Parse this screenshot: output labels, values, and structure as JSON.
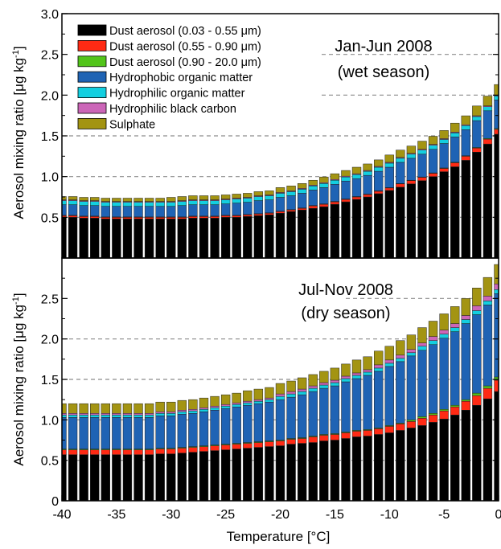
{
  "figure": {
    "xlabel": "Temperature [°C]",
    "ylabel_main": "Aerosol mixing ratio [μg kg",
    "ylabel_sup": "-1",
    "ylabel_end": "]"
  },
  "legend": [
    {
      "label": "Dust aerosol (0.03 - 0.55 μm)",
      "color": "#000000"
    },
    {
      "label": "Dust aerosol (0.55 - 0.90 μm)",
      "color": "#ff2a14"
    },
    {
      "label": "Dust aerosol (0.90 - 20.0 μm)",
      "color": "#52c41a"
    },
    {
      "label": "Hydrophobic organic matter",
      "color": "#1f63b4"
    },
    {
      "label": "Hydrophilic organic matter",
      "color": "#13cfe0"
    },
    {
      "label": "Hydrophilic black carbon",
      "color": "#cc66b8"
    },
    {
      "label": "Sulphate",
      "color": "#a39412"
    }
  ],
  "chart_data": [
    {
      "type": "bar",
      "stacked": true,
      "panel": "top",
      "annotation": [
        "Jan-Jun 2008",
        "(wet season)"
      ],
      "ylabel": "Aerosol mixing ratio [μg kg-1]",
      "ylim": [
        0,
        3.0
      ],
      "yticks": [
        0.5,
        1.0,
        1.5,
        2.0,
        2.5,
        3.0
      ],
      "xlim": [
        -40,
        0
      ],
      "xticks": [
        -40,
        -35,
        -30,
        -25,
        -20,
        -15,
        -10,
        -5,
        0
      ],
      "grid": "dashed horizontal lines at 0.5, 1.0, 1.5, 2.0, 2.5",
      "legend_position": "top-left",
      "x": [
        -40,
        -39,
        -38,
        -37,
        -36,
        -35,
        -34,
        -33,
        -32,
        -31,
        -30,
        -29,
        -28,
        -27,
        -26,
        -25,
        -24,
        -23,
        -22,
        -21,
        -20,
        -19,
        -18,
        -17,
        -16,
        -15,
        -14,
        -13,
        -12,
        -11,
        -10,
        -9,
        -8,
        -7,
        -6,
        -5,
        -4,
        -3,
        -2,
        -1,
        0
      ],
      "series": [
        {
          "name": "Dust aerosol (0.03 - 0.55 μm)",
          "values": [
            0.5,
            0.5,
            0.49,
            0.49,
            0.48,
            0.48,
            0.48,
            0.48,
            0.48,
            0.48,
            0.48,
            0.48,
            0.49,
            0.49,
            0.49,
            0.5,
            0.5,
            0.51,
            0.52,
            0.53,
            0.55,
            0.57,
            0.59,
            0.61,
            0.63,
            0.66,
            0.69,
            0.72,
            0.75,
            0.79,
            0.83,
            0.87,
            0.91,
            0.95,
            1.0,
            1.06,
            1.12,
            1.2,
            1.3,
            1.4,
            1.52
          ]
        },
        {
          "name": "Dust aerosol (0.55 - 0.90 μm)",
          "values": [
            0.02,
            0.02,
            0.02,
            0.02,
            0.02,
            0.02,
            0.02,
            0.02,
            0.02,
            0.02,
            0.02,
            0.02,
            0.02,
            0.02,
            0.02,
            0.02,
            0.02,
            0.02,
            0.02,
            0.02,
            0.02,
            0.02,
            0.02,
            0.03,
            0.03,
            0.03,
            0.03,
            0.03,
            0.03,
            0.03,
            0.03,
            0.04,
            0.04,
            0.04,
            0.04,
            0.04,
            0.05,
            0.05,
            0.05,
            0.06,
            0.06
          ]
        },
        {
          "name": "Dust aerosol (0.90 - 20.0 μm)",
          "values": [
            0.005,
            0.005,
            0.005,
            0.005,
            0.005,
            0.005,
            0.005,
            0.005,
            0.005,
            0.005,
            0.005,
            0.005,
            0.005,
            0.005,
            0.005,
            0.005,
            0.005,
            0.005,
            0.005,
            0.005,
            0.005,
            0.005,
            0.005,
            0.005,
            0.005,
            0.005,
            0.005,
            0.005,
            0.005,
            0.005,
            0.005,
            0.005,
            0.005,
            0.005,
            0.005,
            0.006,
            0.006,
            0.006,
            0.007,
            0.008,
            0.01
          ]
        },
        {
          "name": "Hydrophobic organic matter",
          "values": [
            0.13,
            0.13,
            0.13,
            0.13,
            0.13,
            0.13,
            0.13,
            0.13,
            0.13,
            0.13,
            0.13,
            0.14,
            0.14,
            0.14,
            0.14,
            0.14,
            0.15,
            0.15,
            0.16,
            0.16,
            0.17,
            0.17,
            0.18,
            0.19,
            0.2,
            0.21,
            0.22,
            0.22,
            0.23,
            0.24,
            0.25,
            0.26,
            0.27,
            0.28,
            0.29,
            0.3,
            0.31,
            0.32,
            0.33,
            0.34,
            0.35
          ]
        },
        {
          "name": "Hydrophilic organic matter",
          "values": [
            0.05,
            0.05,
            0.05,
            0.05,
            0.05,
            0.05,
            0.05,
            0.05,
            0.05,
            0.05,
            0.05,
            0.05,
            0.05,
            0.05,
            0.05,
            0.05,
            0.05,
            0.05,
            0.05,
            0.05,
            0.05,
            0.05,
            0.05,
            0.05,
            0.05,
            0.05,
            0.05,
            0.05,
            0.05,
            0.05,
            0.05,
            0.05,
            0.05,
            0.05,
            0.05,
            0.05,
            0.05,
            0.05,
            0.05,
            0.05,
            0.05
          ]
        },
        {
          "name": "Hydrophilic black carbon",
          "values": [
            0.01,
            0.01,
            0.01,
            0.01,
            0.01,
            0.01,
            0.01,
            0.01,
            0.01,
            0.01,
            0.01,
            0.01,
            0.01,
            0.01,
            0.01,
            0.01,
            0.01,
            0.01,
            0.01,
            0.01,
            0.01,
            0.01,
            0.01,
            0.01,
            0.01,
            0.01,
            0.01,
            0.01,
            0.01,
            0.01,
            0.01,
            0.01,
            0.01,
            0.01,
            0.01,
            0.01,
            0.01,
            0.01,
            0.01,
            0.01,
            0.01
          ]
        },
        {
          "name": "Sulphate",
          "values": [
            0.04,
            0.04,
            0.04,
            0.04,
            0.04,
            0.04,
            0.04,
            0.04,
            0.04,
            0.04,
            0.05,
            0.05,
            0.05,
            0.05,
            0.05,
            0.05,
            0.05,
            0.05,
            0.05,
            0.05,
            0.06,
            0.06,
            0.06,
            0.06,
            0.07,
            0.07,
            0.07,
            0.08,
            0.08,
            0.08,
            0.09,
            0.09,
            0.09,
            0.1,
            0.1,
            0.1,
            0.11,
            0.11,
            0.12,
            0.12,
            0.13
          ]
        }
      ]
    },
    {
      "type": "bar",
      "stacked": true,
      "panel": "bottom",
      "annotation": [
        "Jul-Nov 2008",
        "(dry season)"
      ],
      "ylabel": "Aerosol mixing ratio [μg kg-1]",
      "xlabel": "Temperature [°C]",
      "ylim": [
        0,
        3.0
      ],
      "yticks": [
        0,
        0.5,
        1.0,
        1.5,
        2.0,
        2.5
      ],
      "xlim": [
        -40,
        0
      ],
      "xticks": [
        -40,
        -35,
        -30,
        -25,
        -20,
        -15,
        -10,
        -5,
        0
      ],
      "grid": "dashed horizontal lines at 0.5, 1.0, 1.5, 2.0, 2.5",
      "x": [
        -40,
        -39,
        -38,
        -37,
        -36,
        -35,
        -34,
        -33,
        -32,
        -31,
        -30,
        -29,
        -28,
        -27,
        -26,
        -25,
        -24,
        -23,
        -22,
        -21,
        -20,
        -19,
        -18,
        -17,
        -16,
        -15,
        -14,
        -13,
        -12,
        -11,
        -10,
        -9,
        -8,
        -7,
        -6,
        -5,
        -4,
        -3,
        -2,
        -1,
        0
      ],
      "series": [
        {
          "name": "Dust aerosol (0.03 - 0.55 μm)",
          "values": [
            0.57,
            0.57,
            0.57,
            0.57,
            0.57,
            0.57,
            0.57,
            0.57,
            0.57,
            0.58,
            0.58,
            0.59,
            0.6,
            0.61,
            0.62,
            0.63,
            0.64,
            0.65,
            0.66,
            0.67,
            0.68,
            0.7,
            0.71,
            0.72,
            0.74,
            0.75,
            0.77,
            0.79,
            0.8,
            0.82,
            0.84,
            0.87,
            0.9,
            0.93,
            0.97,
            1.01,
            1.06,
            1.12,
            1.18,
            1.26,
            1.35
          ]
        },
        {
          "name": "Dust aerosol (0.55 - 0.90 μm)",
          "values": [
            0.06,
            0.06,
            0.06,
            0.06,
            0.06,
            0.06,
            0.06,
            0.06,
            0.06,
            0.06,
            0.06,
            0.06,
            0.06,
            0.06,
            0.06,
            0.06,
            0.06,
            0.06,
            0.06,
            0.06,
            0.06,
            0.06,
            0.06,
            0.07,
            0.07,
            0.07,
            0.07,
            0.07,
            0.07,
            0.07,
            0.08,
            0.08,
            0.08,
            0.09,
            0.09,
            0.1,
            0.1,
            0.11,
            0.12,
            0.13,
            0.14
          ]
        },
        {
          "name": "Dust aerosol (0.90 - 20.0 μm)",
          "values": [
            0.01,
            0.01,
            0.01,
            0.01,
            0.01,
            0.01,
            0.01,
            0.01,
            0.01,
            0.01,
            0.01,
            0.01,
            0.01,
            0.01,
            0.01,
            0.01,
            0.01,
            0.01,
            0.01,
            0.01,
            0.01,
            0.01,
            0.01,
            0.01,
            0.01,
            0.01,
            0.01,
            0.01,
            0.01,
            0.01,
            0.01,
            0.01,
            0.02,
            0.02,
            0.02,
            0.02,
            0.02,
            0.02,
            0.03,
            0.03,
            0.04
          ]
        },
        {
          "name": "Hydrophobic organic matter",
          "values": [
            0.39,
            0.39,
            0.39,
            0.39,
            0.39,
            0.39,
            0.39,
            0.39,
            0.39,
            0.4,
            0.4,
            0.41,
            0.41,
            0.42,
            0.43,
            0.44,
            0.45,
            0.46,
            0.47,
            0.48,
            0.5,
            0.51,
            0.53,
            0.55,
            0.57,
            0.59,
            0.62,
            0.64,
            0.67,
            0.7,
            0.73,
            0.76,
            0.79,
            0.82,
            0.85,
            0.88,
            0.91,
            0.94,
            0.97,
            1.0,
            1.03
          ]
        },
        {
          "name": "Hydrophilic organic matter",
          "values": [
            0.03,
            0.03,
            0.03,
            0.03,
            0.03,
            0.03,
            0.03,
            0.03,
            0.03,
            0.03,
            0.03,
            0.03,
            0.03,
            0.03,
            0.03,
            0.03,
            0.03,
            0.03,
            0.03,
            0.03,
            0.04,
            0.04,
            0.04,
            0.04,
            0.04,
            0.04,
            0.04,
            0.04,
            0.04,
            0.04,
            0.04,
            0.04,
            0.04,
            0.05,
            0.05,
            0.05,
            0.05,
            0.05,
            0.05,
            0.05,
            0.05
          ]
        },
        {
          "name": "Hydrophilic black carbon",
          "values": [
            0.02,
            0.02,
            0.02,
            0.02,
            0.02,
            0.02,
            0.02,
            0.02,
            0.02,
            0.02,
            0.02,
            0.02,
            0.02,
            0.02,
            0.02,
            0.02,
            0.02,
            0.02,
            0.02,
            0.02,
            0.03,
            0.03,
            0.03,
            0.03,
            0.03,
            0.03,
            0.03,
            0.03,
            0.03,
            0.04,
            0.04,
            0.04,
            0.04,
            0.04,
            0.05,
            0.05,
            0.05,
            0.05,
            0.06,
            0.06,
            0.07
          ]
        },
        {
          "name": "Sulphate",
          "values": [
            0.12,
            0.12,
            0.12,
            0.12,
            0.12,
            0.12,
            0.12,
            0.12,
            0.12,
            0.12,
            0.12,
            0.12,
            0.12,
            0.12,
            0.12,
            0.12,
            0.12,
            0.13,
            0.13,
            0.13,
            0.13,
            0.13,
            0.14,
            0.14,
            0.14,
            0.15,
            0.15,
            0.16,
            0.16,
            0.17,
            0.17,
            0.18,
            0.18,
            0.19,
            0.19,
            0.2,
            0.21,
            0.21,
            0.22,
            0.23,
            0.24
          ]
        }
      ]
    }
  ]
}
